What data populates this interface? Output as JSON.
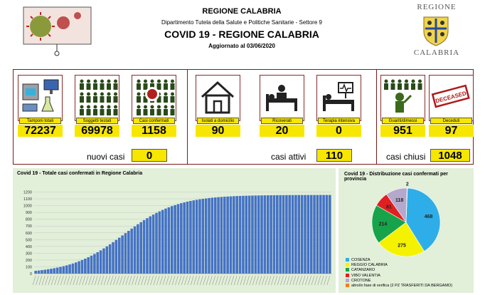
{
  "header": {
    "region": "REGIONE CALABRIA",
    "department": "Dipartimento Tutela della Salute e Politiche Sanitarie - Settore 9",
    "title": "COVID 19 - REGIONE CALABRIA",
    "update_label": "Aggiornato al",
    "update_date": "03/06/2020",
    "logo_top": "REGIONE",
    "logo_bottom": "CALABRIA"
  },
  "stats": {
    "cards": [
      {
        "label": "Tamponi totali",
        "value": "72237",
        "icon": "laboratory-icon"
      },
      {
        "label": "Soggetti testati",
        "value": "69978",
        "icon": "crowd-icon"
      },
      {
        "label": "Casi confermati",
        "value": "1158",
        "icon": "confirmed-cases-icon"
      },
      {
        "label": "Isolati a domicilio",
        "value": "90",
        "icon": "home-icon"
      },
      {
        "label": "Ricoverati",
        "value": "20",
        "icon": "hospital-bed-icon"
      },
      {
        "label": "Terapia intensiva",
        "value": "0",
        "icon": "intensive-care-icon"
      },
      {
        "label": "Guariti/dimessi",
        "value": "951",
        "icon": "recovered-icon"
      },
      {
        "label": "Deceduti",
        "value": "97",
        "icon": "deceased-stamp-icon"
      }
    ],
    "stamp_text": "DECEASED",
    "summaries": [
      {
        "label": "nuovi casi",
        "value": "0"
      },
      {
        "label": "casi attivi",
        "value": "110"
      },
      {
        "label": "casi chiusi",
        "value": "1048"
      }
    ]
  },
  "bar_chart": {
    "type": "bar",
    "title": "Covid 19 - Totale casi confermati in Regione Calabria",
    "ylim": [
      0,
      1300
    ],
    "yticks": [
      0,
      100,
      200,
      300,
      400,
      500,
      600,
      700,
      800,
      900,
      1000,
      1100,
      1200
    ],
    "grid": true,
    "bar_color": "#4472c4"
  },
  "chart_data": {
    "type": "pie",
    "title": "Covid 19 - Distribuzione casi confermati per provincia",
    "slices": [
      {
        "name": "COSENZA",
        "value": 468,
        "color": "#2eaee8"
      },
      {
        "name": "REGGIO CALABRIA",
        "value": 275,
        "color": "#f5f200"
      },
      {
        "name": "CATANZARO",
        "value": 214,
        "color": "#17a34a"
      },
      {
        "name": "VIBO VALENTIA",
        "value": 81,
        "color": "#e02020"
      },
      {
        "name": "CROTONE",
        "value": 118,
        "color": "#b4a8cc"
      },
      {
        "name": "altro/in fase di verifica (2 PZ TRASFERITI DA BERGAMO)",
        "value": 2,
        "color": "#f08020"
      }
    ]
  }
}
